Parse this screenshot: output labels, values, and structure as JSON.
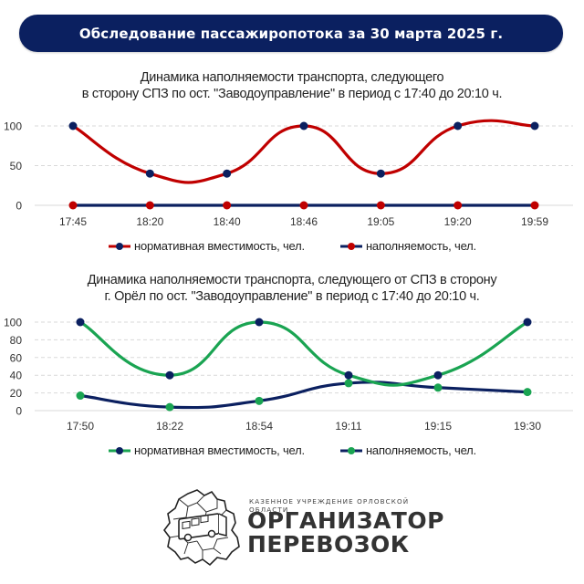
{
  "header": {
    "title": "Обследование пассажиропотока за 30 марта 2025 г.",
    "background": "#0b2060"
  },
  "chart_data": [
    {
      "type": "line",
      "title": "Динамика наполняемости транспорта, следующего в сторону СПЗ по ост. \"Заводоуправление\" в период с 17:40 до 20:10 ч.",
      "title_lines": [
        "Динамика наполняемости транспорта, следующего",
        "в сторону СПЗ  по ост. \"Заводоуправление\" в период с 17:40 до 20:10 ч."
      ],
      "categories": [
        "17:45",
        "18:20",
        "18:40",
        "18:46",
        "19:05",
        "19:20",
        "19:59"
      ],
      "series": [
        {
          "name": "нормативная вместимость, чел.",
          "values": [
            100,
            40,
            40,
            100,
            40,
            100,
            100
          ],
          "line_color": "#c00000",
          "marker_color": "#0b2060"
        },
        {
          "name": "наполняемость, чел.",
          "values": [
            0,
            0,
            0,
            0,
            0,
            0,
            0
          ],
          "line_color": "#0b2060",
          "marker_color": "#c00000"
        }
      ],
      "yticks": [
        0,
        50,
        100
      ],
      "ylim": [
        0,
        100
      ],
      "xlabel": "",
      "ylabel": "",
      "grid": true,
      "smooth": true,
      "legend_position": "bottom"
    },
    {
      "type": "line",
      "title": "Динамика наполняемости транспорта, следующего от СПЗ в сторону г. Орёл по ост. \"Заводоуправление\" в период с 17:40 до 20:10 ч.",
      "title_lines": [
        "Динамика наполняемости транспорта, следующего от СПЗ в сторону",
        "г. Орёл по ост. \"Заводоуправление\" в период с 17:40 до 20:10 ч."
      ],
      "categories": [
        "17:50",
        "18:22",
        "18:54",
        "19:11",
        "19:15",
        "19:30"
      ],
      "series": [
        {
          "name": "нормативная вместимость, чел.",
          "values": [
            100,
            40,
            100,
            40,
            40,
            100
          ],
          "line_color": "#1aa452",
          "marker_color": "#0b2060"
        },
        {
          "name": "наполняемость, чел.",
          "values": [
            17,
            4,
            11,
            31,
            26,
            21
          ],
          "line_color": "#0b2060",
          "marker_color": "#1aa452"
        }
      ],
      "yticks": [
        0,
        20,
        40,
        60,
        80,
        100
      ],
      "ylim": [
        0,
        100
      ],
      "xlabel": "",
      "ylabel": "",
      "grid": true,
      "smooth": true,
      "legend_position": "bottom"
    }
  ],
  "logo": {
    "subtitle": "КАЗЕННОЕ УЧРЕЖДЕНИЕ ОРЛОВСКОЙ ОБЛАСТИ",
    "line1": "ОРГАНИЗАТОР",
    "line2": "ПЕРЕВОЗОК",
    "icon": "region-map-bus-icon"
  }
}
